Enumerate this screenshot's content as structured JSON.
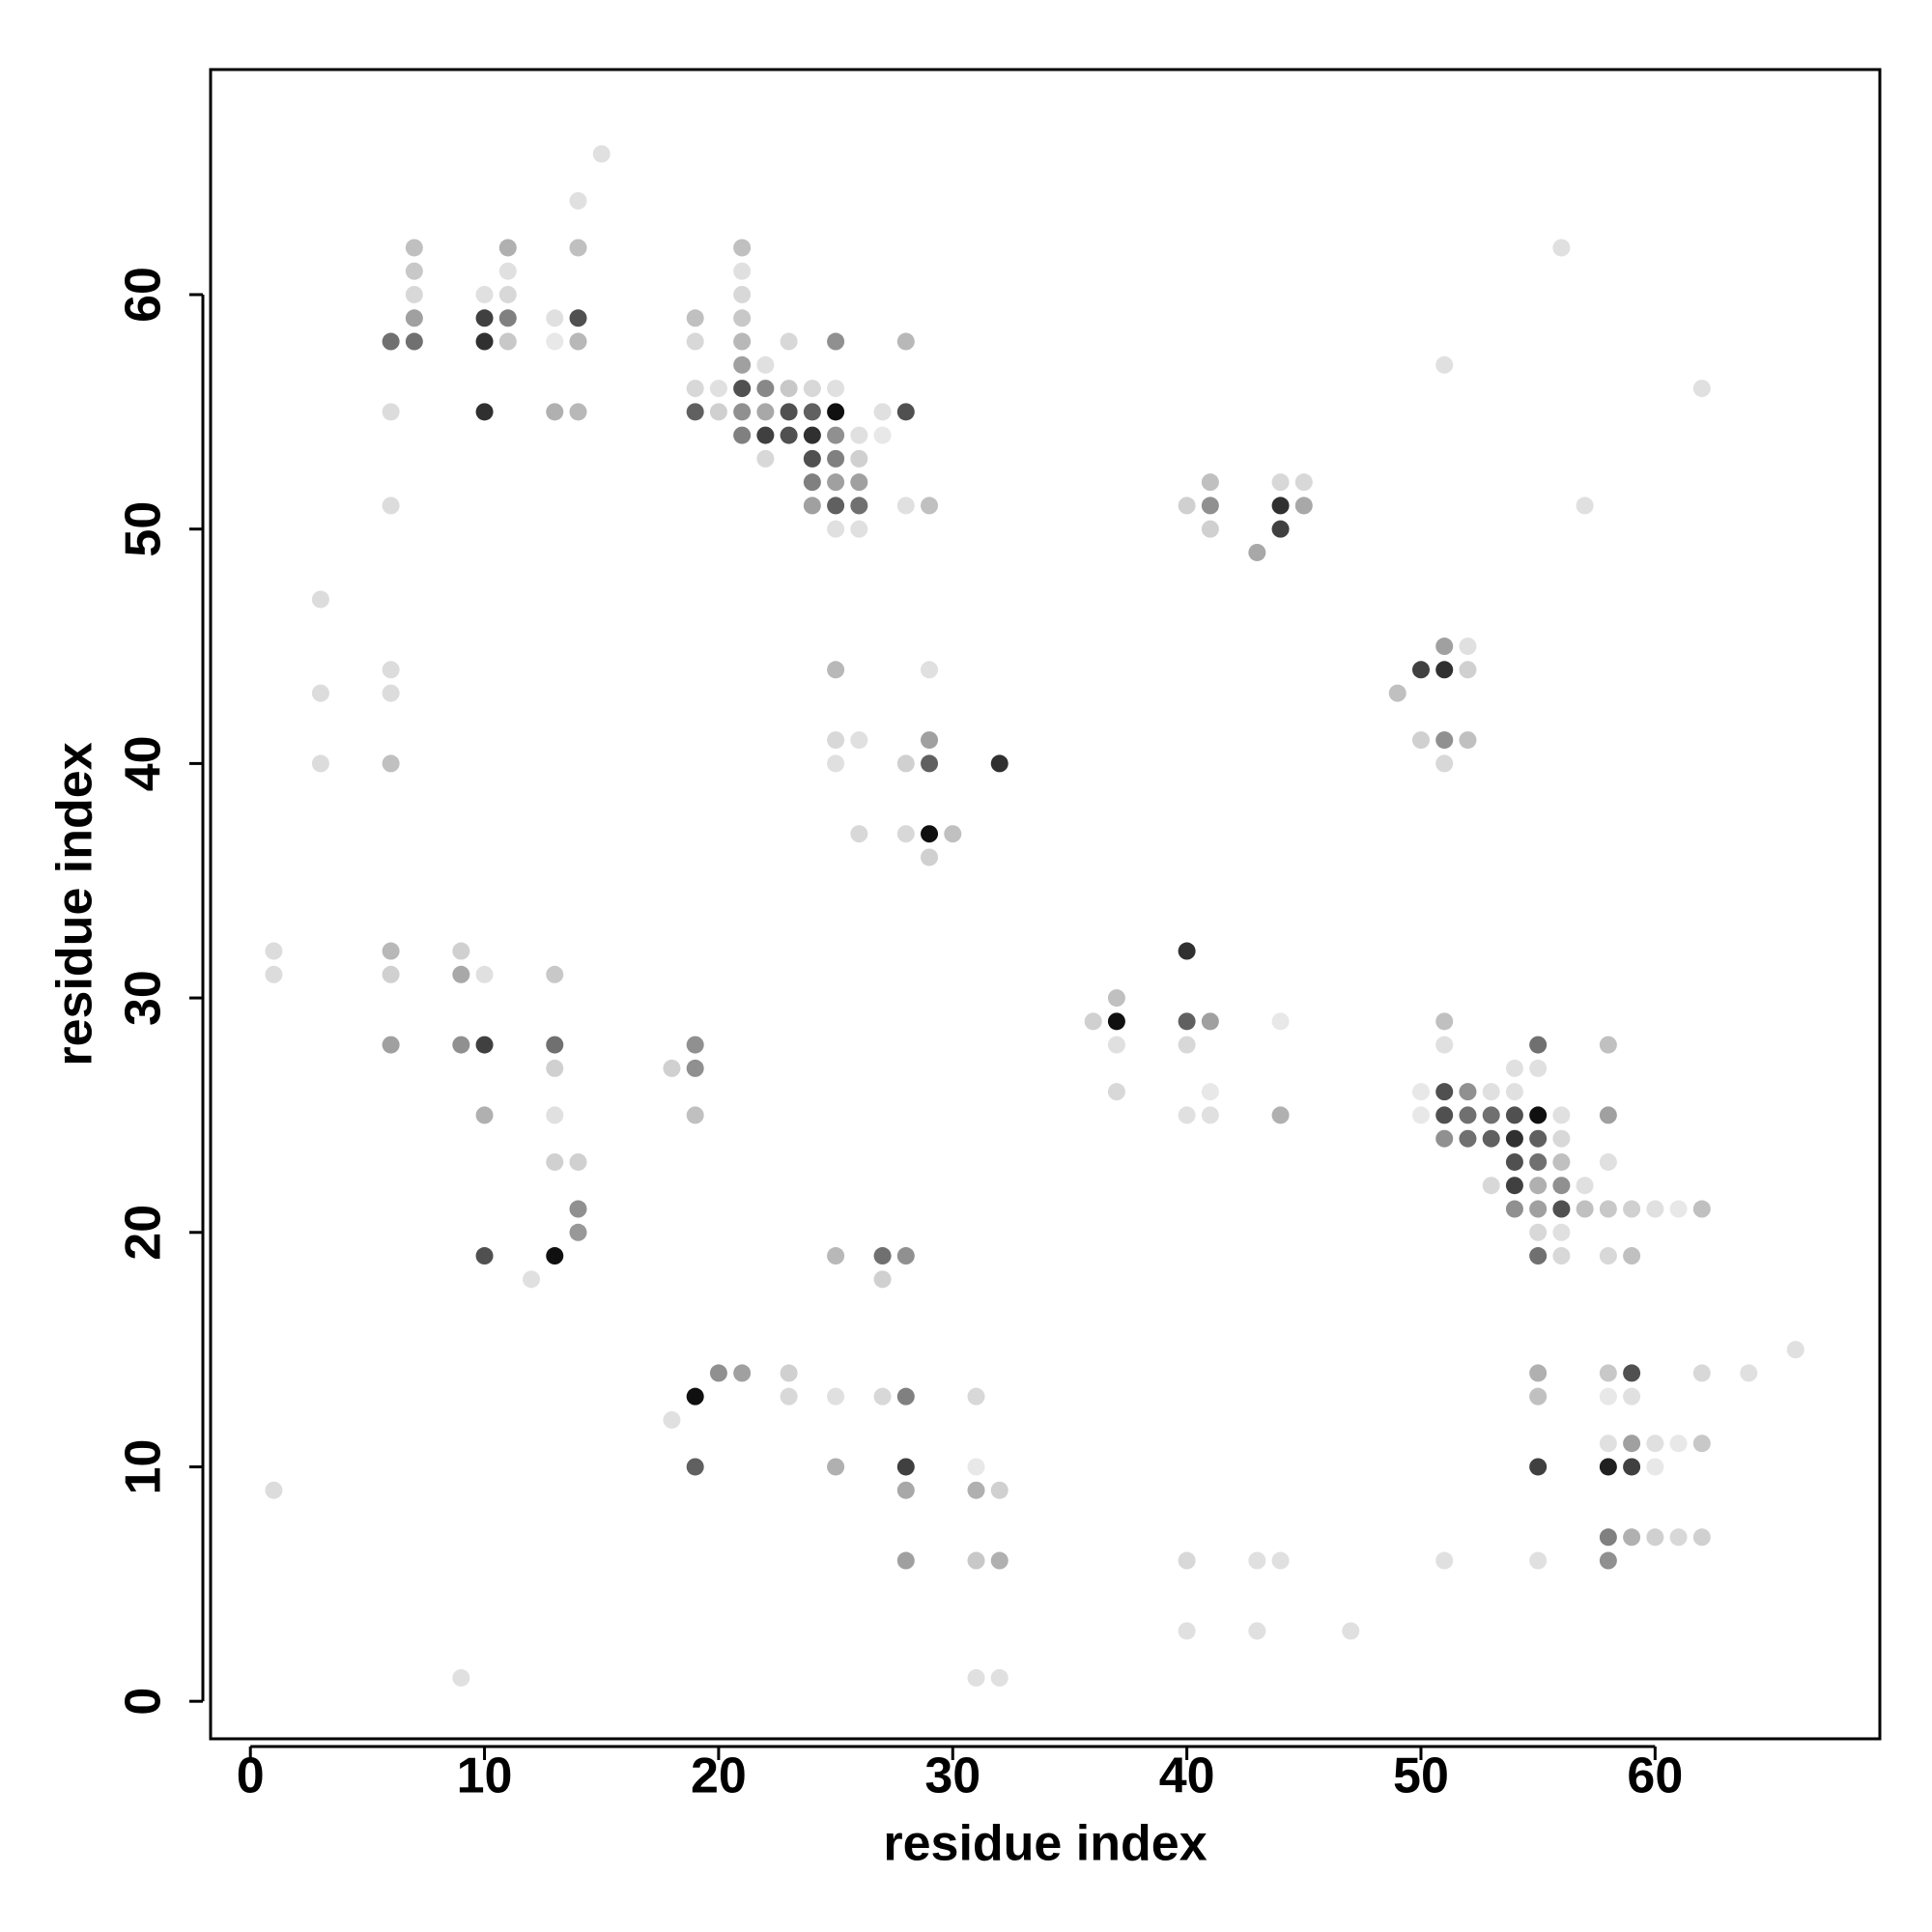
{
  "chart_data": {
    "type": "scatter",
    "x_label": "residue index",
    "y_label": "residue index",
    "xlim": [
      -1.7,
      69.6
    ],
    "ylim": [
      -1.6,
      69.6
    ],
    "xticks": [
      0,
      10,
      20,
      30,
      40,
      50,
      60
    ],
    "yticks": [
      0,
      10,
      20,
      30,
      40,
      50,
      60
    ],
    "x": [
      1,
      1,
      1,
      3,
      3,
      3,
      6,
      6,
      6,
      6,
      6,
      6,
      6,
      6,
      6,
      7,
      7,
      7,
      7,
      7,
      9,
      9,
      9,
      9,
      10,
      10,
      10,
      10,
      10,
      10,
      10,
      10,
      11,
      11,
      11,
      11,
      11,
      12,
      13,
      13,
      13,
      13,
      13,
      13,
      13,
      13,
      13,
      14,
      14,
      14,
      14,
      14,
      14,
      14,
      14,
      15,
      18,
      18,
      19,
      19,
      19,
      19,
      19,
      19,
      19,
      19,
      19,
      20,
      20,
      20,
      21,
      21,
      21,
      21,
      21,
      21,
      21,
      21,
      21,
      21,
      22,
      22,
      22,
      22,
      22,
      23,
      23,
      23,
      23,
      23,
      23,
      24,
      24,
      24,
      24,
      24,
      24,
      25,
      25,
      25,
      25,
      25,
      25,
      25,
      25,
      25,
      25,
      25,
      25,
      25,
      25,
      26,
      26,
      26,
      26,
      26,
      26,
      26,
      27,
      27,
      27,
      27,
      27,
      28,
      28,
      28,
      28,
      28,
      28,
      28,
      28,
      28,
      28,
      29,
      29,
      29,
      29,
      29,
      29,
      30,
      31,
      31,
      31,
      31,
      31,
      32,
      32,
      32,
      32,
      36,
      37,
      37,
      37,
      37,
      40,
      40,
      40,
      40,
      40,
      40,
      40,
      41,
      41,
      41,
      41,
      41,
      41,
      43,
      43,
      43,
      44,
      44,
      44,
      44,
      44,
      44,
      45,
      45,
      47,
      49,
      50,
      50,
      50,
      50,
      51,
      51,
      51,
      51,
      51,
      51,
      51,
      51,
      51,
      51,
      51,
      52,
      52,
      52,
      52,
      52,
      52,
      53,
      53,
      53,
      53,
      54,
      54,
      54,
      54,
      54,
      54,
      54,
      55,
      55,
      55,
      55,
      55,
      55,
      55,
      55,
      55,
      55,
      55,
      55,
      55,
      56,
      56,
      56,
      56,
      56,
      56,
      56,
      56,
      57,
      57,
      57,
      58,
      58,
      58,
      58,
      58,
      58,
      58,
      58,
      58,
      58,
      58,
      59,
      59,
      59,
      59,
      59,
      59,
      59,
      60,
      60,
      60,
      60,
      61,
      61,
      61,
      62,
      62,
      62,
      62,
      62,
      64,
      66
    ],
    "values": [
      32,
      31,
      9,
      47,
      43,
      40,
      58,
      55,
      51,
      44,
      43,
      40,
      32,
      31,
      28,
      62,
      61,
      60,
      59,
      58,
      32,
      31,
      28,
      1,
      60,
      59,
      58,
      55,
      31,
      28,
      25,
      19,
      62,
      61,
      60,
      59,
      58,
      18,
      59,
      58,
      55,
      31,
      28,
      27,
      25,
      23,
      19,
      64,
      62,
      59,
      58,
      55,
      23,
      21,
      20,
      66,
      27,
      12,
      59,
      58,
      56,
      55,
      28,
      27,
      25,
      13,
      10,
      56,
      55,
      14,
      62,
      61,
      60,
      59,
      58,
      57,
      56,
      55,
      54,
      14,
      57,
      56,
      55,
      54,
      53,
      58,
      56,
      55,
      54,
      14,
      13,
      56,
      55,
      54,
      53,
      52,
      51,
      58,
      56,
      55,
      54,
      53,
      52,
      51,
      50,
      44,
      41,
      40,
      19,
      13,
      10,
      54,
      53,
      52,
      51,
      50,
      41,
      37,
      55,
      54,
      19,
      18,
      13,
      58,
      55,
      51,
      40,
      37,
      19,
      13,
      10,
      9,
      6,
      51,
      44,
      41,
      40,
      37,
      36,
      37,
      13,
      10,
      9,
      6,
      1,
      40,
      9,
      6,
      1,
      29,
      30,
      29,
      28,
      26,
      51,
      32,
      29,
      28,
      25,
      6,
      3,
      52,
      51,
      50,
      29,
      26,
      25,
      49,
      6,
      3,
      52,
      51,
      50,
      29,
      25,
      6,
      52,
      51,
      3,
      43,
      44,
      41,
      26,
      25,
      57,
      45,
      44,
      41,
      40,
      29,
      28,
      26,
      25,
      24,
      6,
      45,
      44,
      41,
      26,
      25,
      24,
      26,
      25,
      24,
      22,
      27,
      26,
      25,
      24,
      23,
      22,
      21,
      28,
      27,
      25,
      24,
      23,
      22,
      21,
      20,
      19,
      14,
      13,
      10,
      6,
      62,
      25,
      24,
      23,
      22,
      21,
      20,
      19,
      51,
      22,
      21,
      28,
      25,
      23,
      21,
      19,
      14,
      13,
      11,
      10,
      7,
      6,
      21,
      19,
      14,
      13,
      11,
      10,
      7,
      21,
      11,
      10,
      7,
      21,
      11,
      7,
      56,
      21,
      14,
      11,
      7,
      14,
      15
    ],
    "colors": [
      "#dcdcdc",
      "#dcdcdc",
      "#dcdcdc",
      "#dcdcdc",
      "#dcdcdc",
      "#dcdcdc",
      "#707070",
      "#dcdcdc",
      "#dcdcdc",
      "#dcdcdc",
      "#dcdcdc",
      "#c0c0c0",
      "#b8b8b8",
      "#d0d0d0",
      "#a0a0a0",
      "#c0c0c0",
      "#c8c8c8",
      "#d8d8d8",
      "#a0a0a0",
      "#707070",
      "#d0d0d0",
      "#a8a8a8",
      "#909090",
      "#e0e0e0",
      "#e0e0e0",
      "#404040",
      "#303030",
      "#303030",
      "#e0e0e0",
      "#404040",
      "#b0b0b0",
      "#505050",
      "#b0b0b0",
      "#e0e0e0",
      "#d8d8d8",
      "#808080",
      "#c8c8c8",
      "#e0e0e0",
      "#e0e0e0",
      "#e8e8e8",
      "#b0b0b0",
      "#c8c8c8",
      "#707070",
      "#d0d0d0",
      "#e0e0e0",
      "#d0d0d0",
      "#101010",
      "#e0e0e0",
      "#c0c0c0",
      "#505050",
      "#b8b8b8",
      "#b8b8b8",
      "#d0d0d0",
      "#909090",
      "#989898",
      "#e0e0e0",
      "#d0d0d0",
      "#e0e0e0",
      "#c0c0c0",
      "#d8d8d8",
      "#d8d8d8",
      "#606060",
      "#909090",
      "#909090",
      "#c0c0c0",
      "#101010",
      "#606060",
      "#e0e0e0",
      "#d0d0d0",
      "#909090",
      "#c0c0c0",
      "#e0e0e0",
      "#d8d8d8",
      "#c8c8c8",
      "#b8b8b8",
      "#a0a0a0",
      "#505050",
      "#909090",
      "#808080",
      "#a0a0a0",
      "#e0e0e0",
      "#888888",
      "#a8a8a8",
      "#404040",
      "#d8d8d8",
      "#d8d8d8",
      "#c8c8c8",
      "#505050",
      "#505050",
      "#d0d0d0",
      "#d8d8d8",
      "#d8d8d8",
      "#606060",
      "#303030",
      "#505050",
      "#808080",
      "#a0a0a0",
      "#909090",
      "#e0e0e0",
      "#101010",
      "#909090",
      "#808080",
      "#a0a0a0",
      "#606060",
      "#e0e0e0",
      "#b8b8b8",
      "#d8d8d8",
      "#e0e0e0",
      "#b8b8b8",
      "#e0e0e0",
      "#b0b0b0",
      "#e0e0e0",
      "#d0d0d0",
      "#a0a0a0",
      "#707070",
      "#e0e0e0",
      "#e0e0e0",
      "#d8d8d8",
      "#e0e0e0",
      "#e8e8e8",
      "#707070",
      "#d0d0d0",
      "#d8d8d8",
      "#b8b8b8",
      "#505050",
      "#e0e0e0",
      "#d0d0d0",
      "#d8d8d8",
      "#909090",
      "#808080",
      "#404040",
      "#a8a8a8",
      "#a0a0a0",
      "#c0c0c0",
      "#e0e0e0",
      "#a0a0a0",
      "#606060",
      "#101010",
      "#d0d0d0",
      "#c0c0c0",
      "#d8d8d8",
      "#e8e8e8",
      "#b0b0b0",
      "#c8c8c8",
      "#e0e0e0",
      "#303030",
      "#d0d0d0",
      "#b0b0b0",
      "#e0e0e0",
      "#d0d0d0",
      "#c0c0c0",
      "#101010",
      "#e0e0e0",
      "#d8d8d8",
      "#d0d0d0",
      "#303030",
      "#606060",
      "#d8d8d8",
      "#e0e0e0",
      "#d8d8d8",
      "#e0e0e0",
      "#c0c0c0",
      "#909090",
      "#d0d0d0",
      "#a0a0a0",
      "#e8e8e8",
      "#e0e0e0",
      "#a8a8a8",
      "#e0e0e0",
      "#e0e0e0",
      "#d8d8d8",
      "#303030",
      "#404040",
      "#e8e8e8",
      "#b0b0b0",
      "#e0e0e0",
      "#d8d8d8",
      "#a8a8a8",
      "#e0e0e0",
      "#c0c0c0",
      "#404040",
      "#d0d0d0",
      "#e8e8e8",
      "#e8e8e8",
      "#e0e0e0",
      "#a0a0a0",
      "#303030",
      "#909090",
      "#d8d8d8",
      "#c0c0c0",
      "#e0e0e0",
      "#505050",
      "#505050",
      "#909090",
      "#e0e0e0",
      "#e0e0e0",
      "#d0d0d0",
      "#c0c0c0",
      "#909090",
      "#707070",
      "#707070",
      "#e0e0e0",
      "#707070",
      "#606060",
      "#d8d8d8",
      "#e0e0e0",
      "#e0e0e0",
      "#505050",
      "#303030",
      "#505050",
      "#404040",
      "#909090",
      "#707070",
      "#e0e0e0",
      "#101010",
      "#606060",
      "#707070",
      "#b0b0b0",
      "#a0a0a0",
      "#d8d8d8",
      "#707070",
      "#b0b0b0",
      "#c0c0c0",
      "#404040",
      "#e0e0e0",
      "#e0e0e0",
      "#e0e0e0",
      "#d8d8d8",
      "#c0c0c0",
      "#909090",
      "#505050",
      "#e0e0e0",
      "#d8d8d8",
      "#e0e0e0",
      "#e0e0e0",
      "#c0c0c0",
      "#c0c0c0",
      "#a0a0a0",
      "#e0e0e0",
      "#c8c8c8",
      "#d8d8d8",
      "#c8c8c8",
      "#e8e8e8",
      "#e0e0e0",
      "#202020",
      "#808080",
      "#909090",
      "#d0d0d0",
      "#c0c0c0",
      "#505050",
      "#e0e0e0",
      "#a0a0a0",
      "#404040",
      "#b0b0b0",
      "#e0e0e0",
      "#e0e0e0",
      "#e8e8e8",
      "#d0d0d0",
      "#e8e8e8",
      "#e8e8e8",
      "#d8d8d8",
      "#e0e0e0",
      "#c0c0c0",
      "#d8d8d8",
      "#c8c8c8",
      "#d0d0d0",
      "#e0e0e0",
      "#e0e0e0"
    ]
  }
}
